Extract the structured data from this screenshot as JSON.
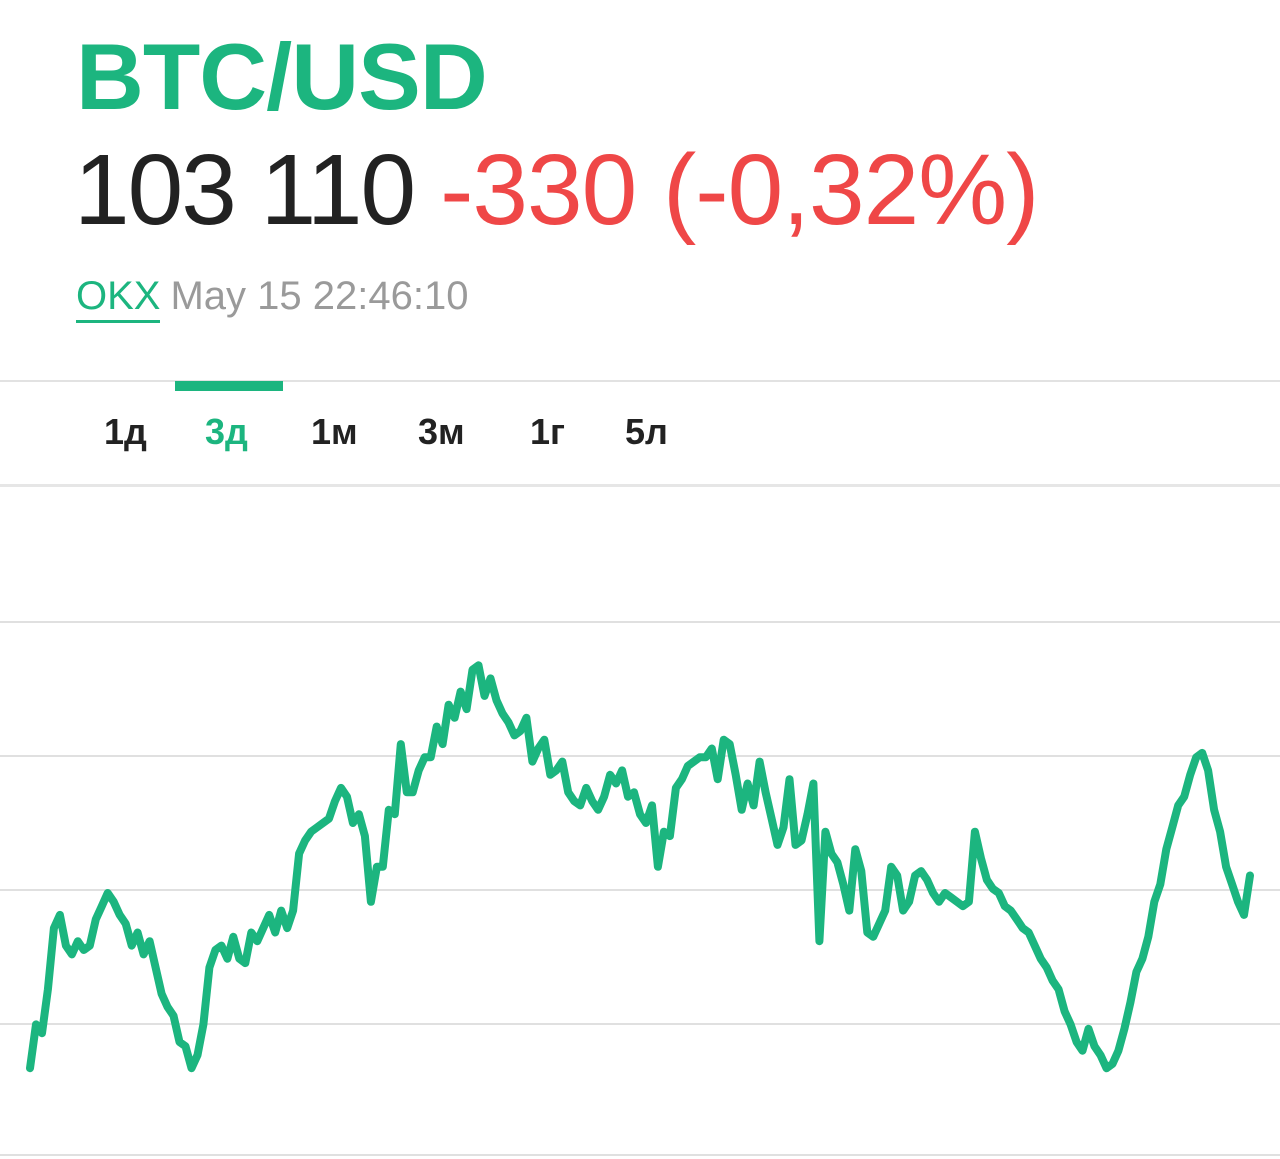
{
  "header": {
    "title": "BTC/USD",
    "price": "103 110",
    "change": "-330 (-0,32%)",
    "source": "OKX",
    "timestamp": "May 15 22:46:10"
  },
  "tabs": {
    "items": [
      {
        "label": "1д"
      },
      {
        "label": "3д"
      },
      {
        "label": "1м"
      },
      {
        "label": "3м"
      },
      {
        "label": "1г"
      },
      {
        "label": "5л"
      }
    ],
    "active_index": 1
  },
  "colors": {
    "accent": "#1cb57f",
    "negative": "#ef4747",
    "text": "#222222",
    "muted": "#9a9a9a",
    "grid": "#e0e0e0"
  },
  "chart_data": {
    "type": "line",
    "grid": true,
    "gridlines": 4,
    "ylim": [
      0,
      100
    ],
    "series": [
      {
        "values": [
          2,
          12,
          10,
          20,
          34,
          37,
          30,
          28,
          31,
          29,
          30,
          36,
          39,
          42,
          40,
          37,
          35,
          30,
          33,
          28,
          31,
          25,
          19,
          16,
          14,
          8,
          7,
          2,
          5,
          12,
          25,
          29,
          30,
          27,
          32,
          27,
          26,
          33,
          31,
          34,
          37,
          33,
          38,
          34,
          38,
          51,
          54,
          56,
          57,
          58,
          59,
          63,
          66,
          64,
          58,
          60,
          55,
          40,
          48,
          48,
          61,
          60,
          76,
          65,
          65,
          70,
          73,
          73,
          80,
          76,
          85,
          82,
          88,
          84,
          93,
          94,
          87,
          91,
          86,
          83,
          81,
          78,
          79,
          82,
          72,
          75,
          77,
          69,
          70,
          72,
          65,
          63,
          62,
          66,
          63,
          61,
          64,
          69,
          67,
          70,
          64,
          65,
          60,
          58,
          62,
          48,
          56,
          55,
          66,
          68,
          71,
          72,
          73,
          73,
          75,
          68,
          77,
          76,
          69,
          61,
          67,
          62,
          72,
          65,
          59,
          53,
          57,
          68,
          53,
          54,
          60,
          67,
          31,
          56,
          51,
          49,
          44,
          38,
          52,
          47,
          33,
          32,
          35,
          38,
          48,
          46,
          38,
          40,
          46,
          47,
          45,
          42,
          40,
          42,
          41,
          40,
          39,
          40,
          56,
          50,
          45,
          43,
          42,
          39,
          38,
          36,
          34,
          33,
          30,
          27,
          25,
          22,
          20,
          15,
          12,
          8,
          6,
          11,
          7,
          5,
          2,
          3,
          6,
          11,
          17,
          24,
          27,
          32,
          40,
          44,
          52,
          57,
          62,
          64,
          69,
          73,
          74,
          70,
          61,
          56,
          48,
          44,
          40,
          37,
          46
        ]
      }
    ]
  }
}
